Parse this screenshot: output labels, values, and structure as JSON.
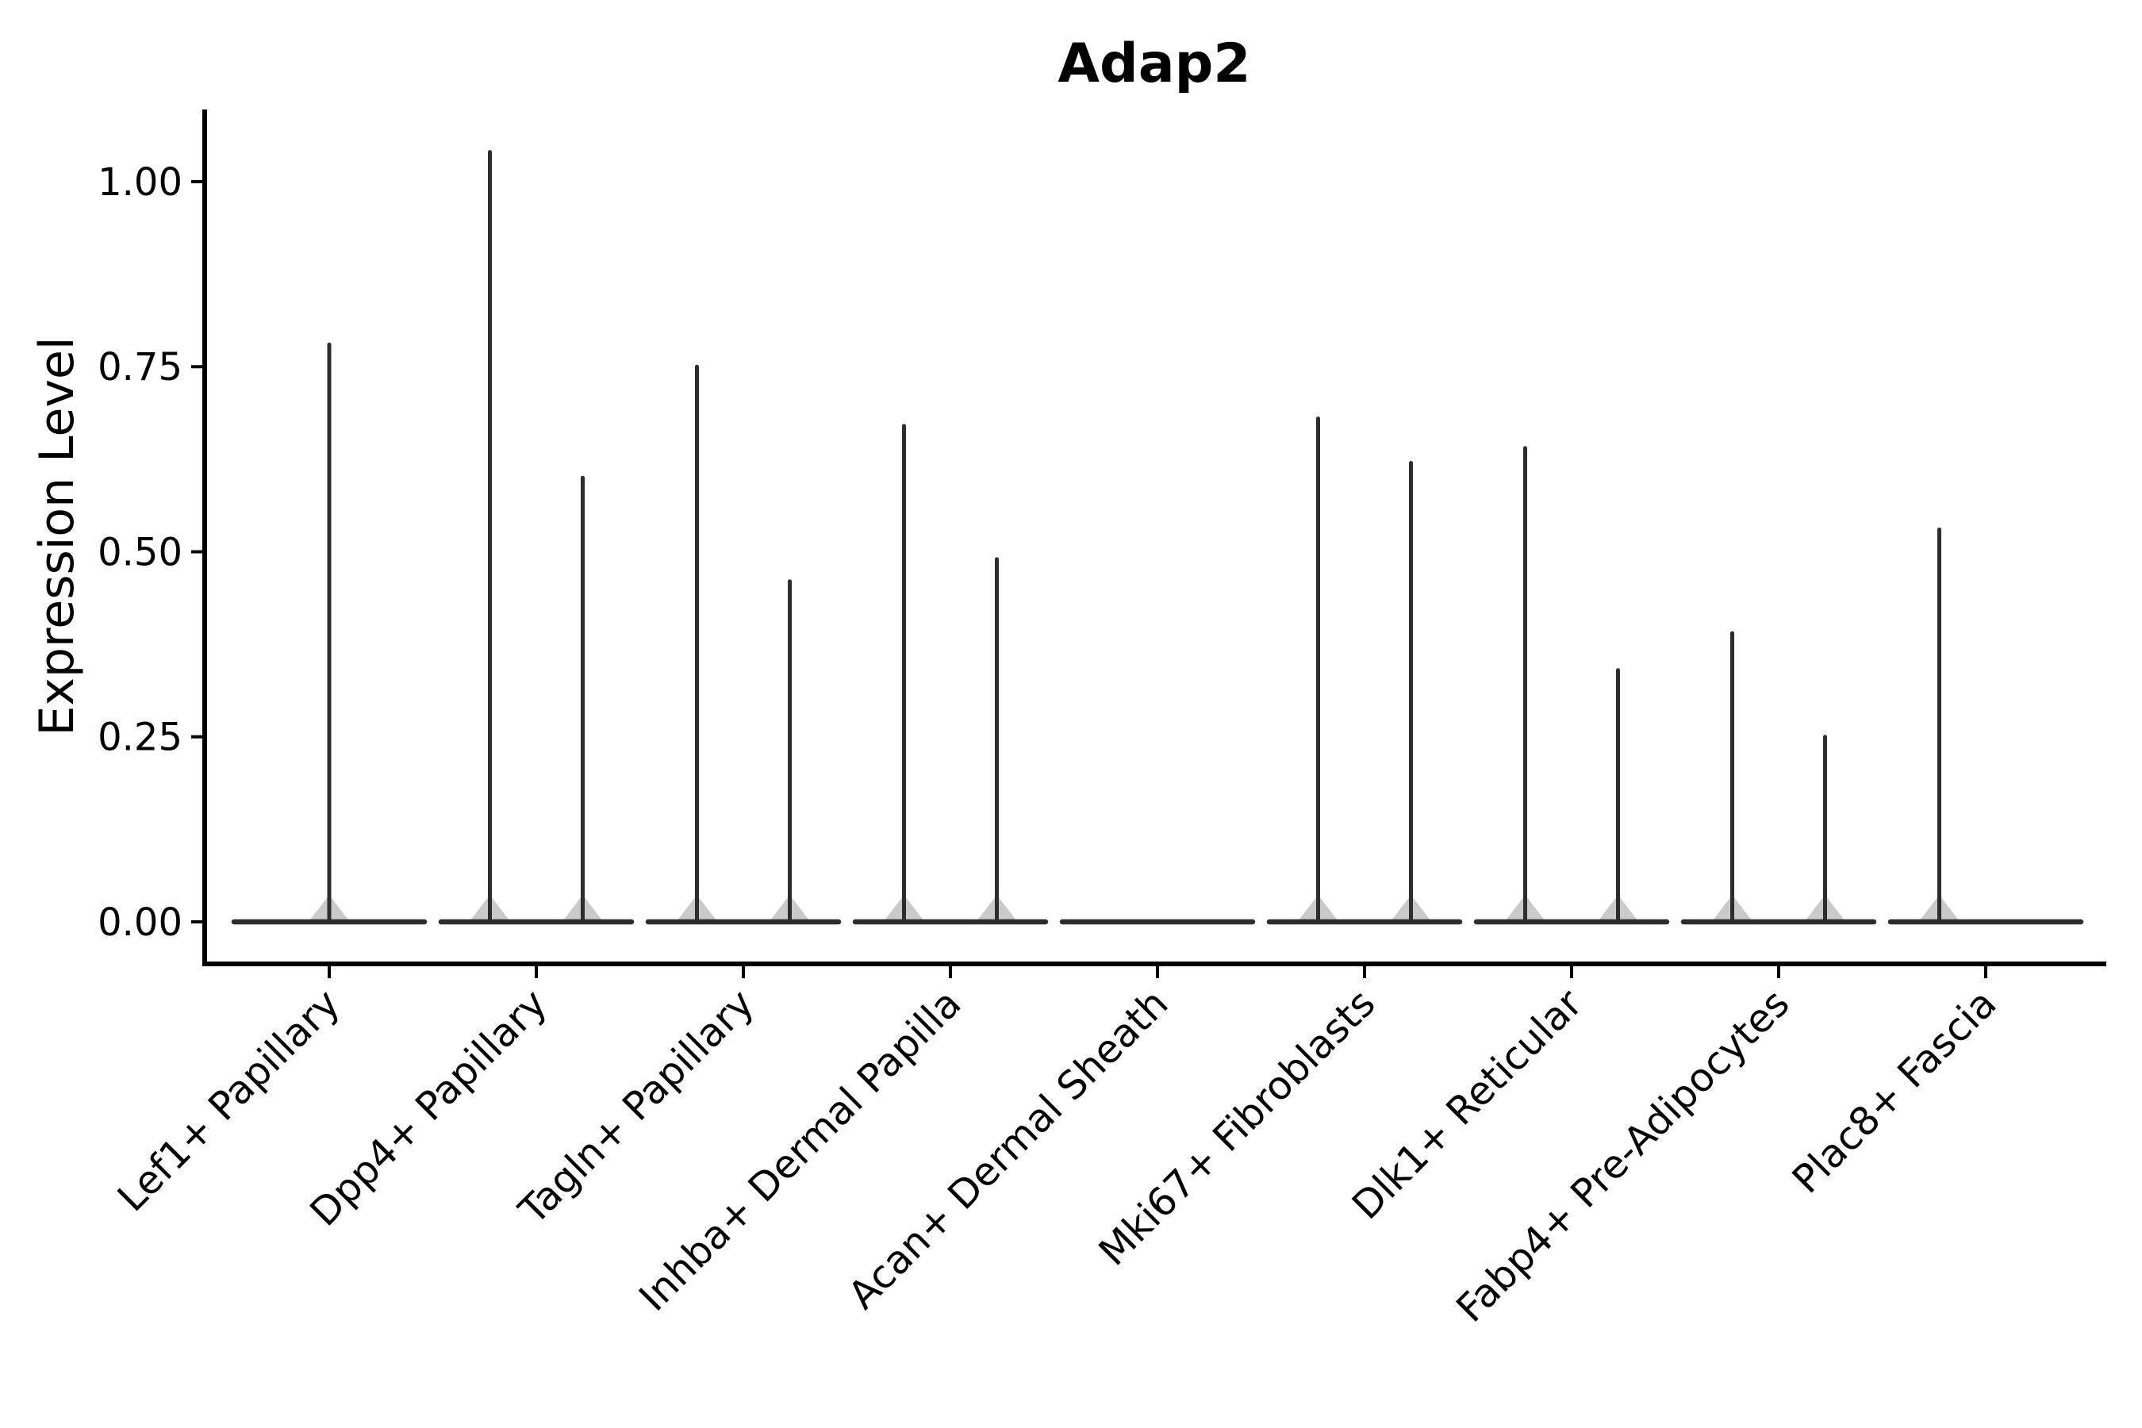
{
  "figure": {
    "title": "Adap2",
    "y_axis_label": "Expression Level"
  },
  "chart_data": {
    "type": "violin",
    "title": "Adap2",
    "ylabel": "Expression Level",
    "xlabel": "",
    "ylim": [
      0,
      1.09
    ],
    "grid": false,
    "legend": "none",
    "x_tick_rotation_degrees": 45,
    "colors": {
      "violin_stroke": "#2d2d2d",
      "axis": "#000000",
      "text": "#000000",
      "background": "#ffffff"
    },
    "yticks": [
      {
        "value": 1.0,
        "label": "1.00"
      },
      {
        "value": 0.75,
        "label": "0.75"
      },
      {
        "value": 0.5,
        "label": "0.50"
      },
      {
        "value": 0.25,
        "label": "0.25"
      },
      {
        "value": 0.0,
        "label": "0.00"
      }
    ],
    "violins": [
      {
        "category": "Lef1+ Papillary",
        "baseline_at": 0.0,
        "spikes": [
          {
            "position": "center",
            "max_expression": 0.78
          }
        ]
      },
      {
        "category": "Dpp4+ Papillary",
        "baseline_at": 0.0,
        "spikes": [
          {
            "position": "left",
            "max_expression": 1.04
          },
          {
            "position": "right",
            "max_expression": 0.6
          }
        ]
      },
      {
        "category": "Tagln+ Papillary",
        "baseline_at": 0.0,
        "spikes": [
          {
            "position": "left",
            "max_expression": 0.75
          },
          {
            "position": "right",
            "max_expression": 0.46
          }
        ]
      },
      {
        "category": "Inhba+ Dermal Papilla",
        "baseline_at": 0.0,
        "spikes": [
          {
            "position": "left",
            "max_expression": 0.67
          },
          {
            "position": "right",
            "max_expression": 0.49
          }
        ]
      },
      {
        "category": "Acan+ Dermal Sheath",
        "baseline_at": 0.0,
        "spikes": []
      },
      {
        "category": "Mki67+ Fibroblasts",
        "baseline_at": 0.0,
        "spikes": [
          {
            "position": "left",
            "max_expression": 0.68
          },
          {
            "position": "right",
            "max_expression": 0.62
          }
        ]
      },
      {
        "category": "Dlk1+ Reticular",
        "baseline_at": 0.0,
        "spikes": [
          {
            "position": "left",
            "max_expression": 0.64
          },
          {
            "position": "right",
            "max_expression": 0.34
          }
        ]
      },
      {
        "category": "Fabp4+ Pre-Adipocytes",
        "baseline_at": 0.0,
        "spikes": [
          {
            "position": "left",
            "max_expression": 0.39
          },
          {
            "position": "right",
            "max_expression": 0.25
          }
        ]
      },
      {
        "category": "Plac8+ Fascia",
        "baseline_at": 0.0,
        "spikes": [
          {
            "position": "left",
            "max_expression": 0.53
          }
        ]
      }
    ]
  }
}
